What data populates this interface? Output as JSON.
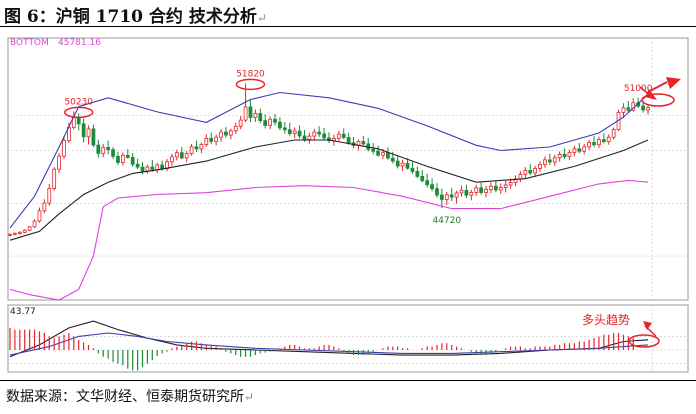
{
  "title": "图 6：沪铜 1710 合约 技术分析",
  "source": "数据来源：文华财经、恒泰期货研究所",
  "para_mark": "↵",
  "colors": {
    "up": "#e8232a",
    "down": "#1e8a3a",
    "upper_band": "#3c3cb4",
    "mid_band": "#222222",
    "lower_band": "#e040e0",
    "diff": "#222222",
    "dea": "#3c3cb4",
    "annot": "#e8232a",
    "green_label": "#2a7a2a",
    "grid": "#c8c8c8"
  },
  "chart_data": {
    "type": "candlestick",
    "price_panel": {
      "bottom_label": "BOTTOM",
      "bottom_value": "45781.16",
      "ylim": [
        39500,
        54400
      ],
      "annotations": [
        {
          "label": "50230",
          "value": 50230,
          "bar": 14,
          "circled": true
        },
        {
          "label": "51820",
          "value": 51820,
          "bar": 49,
          "circled": true
        },
        {
          "label": "44720",
          "value": 44720,
          "bar": 89
        },
        {
          "label": "51000",
          "value": 51000,
          "bar": 128
        }
      ],
      "candles": [
        [
          43180,
          43290,
          43110,
          43240
        ],
        [
          43240,
          43350,
          43170,
          43290
        ],
        [
          43290,
          43410,
          43210,
          43350
        ],
        [
          43350,
          43530,
          43290,
          43470
        ],
        [
          43470,
          43710,
          43410,
          43660
        ],
        [
          43660,
          44090,
          43590,
          43990
        ],
        [
          43990,
          44760,
          43900,
          44570
        ],
        [
          44570,
          45230,
          44440,
          45010
        ],
        [
          45010,
          46090,
          44860,
          45840
        ],
        [
          45840,
          47060,
          45720,
          46940
        ],
        [
          46940,
          47850,
          46710,
          47680
        ],
        [
          47680,
          48840,
          47500,
          48570
        ],
        [
          48570,
          49600,
          48430,
          49320
        ],
        [
          49320,
          50230,
          49210,
          49880
        ],
        [
          49880,
          50110,
          49150,
          49520
        ],
        [
          49520,
          49830,
          48450,
          48780
        ],
        [
          48780,
          49430,
          48340,
          49230
        ],
        [
          49230,
          49470,
          48200,
          48310
        ],
        [
          48310,
          48620,
          47600,
          47840
        ],
        [
          47840,
          48380,
          47620,
          48180
        ],
        [
          48180,
          48560,
          47790,
          48050
        ],
        [
          48050,
          48190,
          47510,
          47670
        ],
        [
          47670,
          47930,
          47180,
          47320
        ],
        [
          47320,
          47890,
          47150,
          47730
        ],
        [
          47730,
          48080,
          47530,
          47610
        ],
        [
          47610,
          47860,
          47070,
          47220
        ],
        [
          47220,
          47530,
          46950,
          47060
        ],
        [
          47060,
          47350,
          46640,
          46840
        ],
        [
          46840,
          47200,
          46680,
          47060
        ],
        [
          47060,
          47470,
          46790,
          46920
        ],
        [
          46920,
          47310,
          46710,
          47180
        ],
        [
          47180,
          47430,
          46850,
          46970
        ],
        [
          46970,
          47520,
          46820,
          47360
        ],
        [
          47360,
          47810,
          47130,
          47640
        ],
        [
          47640,
          48050,
          47440,
          47880
        ],
        [
          47880,
          48200,
          47510,
          47580
        ],
        [
          47580,
          47970,
          47340,
          47830
        ],
        [
          47830,
          48380,
          47700,
          48210
        ],
        [
          48210,
          48560,
          47920,
          48090
        ],
        [
          48090,
          48460,
          47850,
          48340
        ],
        [
          48340,
          48930,
          48210,
          48690
        ],
        [
          48690,
          49040,
          48360,
          48520
        ],
        [
          48520,
          48900,
          48290,
          48760
        ],
        [
          48760,
          49220,
          48510,
          49050
        ],
        [
          49050,
          49330,
          48720,
          48880
        ],
        [
          48880,
          49240,
          48630,
          49120
        ],
        [
          49120,
          49580,
          48940,
          49370
        ],
        [
          49370,
          49960,
          49210,
          49730
        ],
        [
          49730,
          51820,
          49610,
          50480
        ],
        [
          50480,
          50860,
          49620,
          49880
        ],
        [
          49880,
          50340,
          49630,
          50110
        ],
        [
          50110,
          50380,
          49550,
          49700
        ],
        [
          49700,
          50060,
          49260,
          49430
        ],
        [
          49430,
          49930,
          49210,
          49780
        ],
        [
          49780,
          50080,
          49430,
          49610
        ],
        [
          49610,
          49890,
          49160,
          49290
        ],
        [
          49290,
          49620,
          48960,
          49180
        ],
        [
          49180,
          49580,
          48810,
          48960
        ],
        [
          48960,
          49320,
          48710,
          49110
        ],
        [
          49110,
          49430,
          48680,
          48830
        ],
        [
          48830,
          49170,
          48490,
          48630
        ],
        [
          48630,
          49010,
          48390,
          48820
        ],
        [
          48820,
          49230,
          48610,
          49050
        ],
        [
          49050,
          49370,
          48770,
          48940
        ],
        [
          48940,
          49280,
          48610,
          48720
        ],
        [
          48720,
          49030,
          48420,
          48560
        ],
        [
          48560,
          48900,
          48270,
          48690
        ],
        [
          48690,
          49110,
          48550,
          48930
        ],
        [
          48930,
          49260,
          48640,
          48740
        ],
        [
          48740,
          49010,
          48330,
          48440
        ],
        [
          48440,
          48770,
          48120,
          48290
        ],
        [
          48290,
          48640,
          48010,
          48510
        ],
        [
          48510,
          48830,
          48240,
          48380
        ],
        [
          48380,
          48710,
          47950,
          48070
        ],
        [
          48070,
          48420,
          47790,
          47960
        ],
        [
          47960,
          48280,
          47650,
          47740
        ],
        [
          47740,
          48090,
          47510,
          47880
        ],
        [
          47880,
          48180,
          47490,
          47570
        ],
        [
          47570,
          47920,
          47260,
          47400
        ],
        [
          47400,
          47720,
          46980,
          47120
        ],
        [
          47120,
          47480,
          46830,
          47280
        ],
        [
          47280,
          47560,
          46920,
          46990
        ],
        [
          46990,
          47350,
          46670,
          46810
        ],
        [
          46810,
          47090,
          46420,
          46530
        ],
        [
          46530,
          46900,
          46180,
          46290
        ],
        [
          46290,
          46670,
          45910,
          46060
        ],
        [
          46060,
          46420,
          45680,
          45830
        ],
        [
          45830,
          46150,
          45320,
          45470
        ],
        [
          45470,
          45830,
          44720,
          45220
        ],
        [
          45220,
          45640,
          44900,
          45480
        ],
        [
          45480,
          45860,
          45130,
          45350
        ],
        [
          45350,
          45720,
          44980,
          45590
        ],
        [
          45590,
          46010,
          45380,
          45740
        ],
        [
          45740,
          46050,
          45300,
          45460
        ],
        [
          45460,
          45780,
          45170,
          45620
        ],
        [
          45620,
          46060,
          45420,
          45880
        ],
        [
          45880,
          46190,
          45490,
          45610
        ],
        [
          45610,
          45990,
          45350,
          45790
        ],
        [
          45790,
          46200,
          45580,
          45970
        ],
        [
          45970,
          46290,
          45630,
          45760
        ],
        [
          45760,
          46130,
          45530,
          45900
        ],
        [
          45900,
          46270,
          45620,
          46040
        ],
        [
          46040,
          46410,
          45830,
          46180
        ],
        [
          46180,
          46590,
          45970,
          46390
        ],
        [
          46390,
          46830,
          46200,
          46650
        ],
        [
          46650,
          47060,
          46410,
          46870
        ],
        [
          46870,
          47240,
          46600,
          46720
        ],
        [
          46720,
          47120,
          46510,
          46980
        ],
        [
          46980,
          47390,
          46790,
          47210
        ],
        [
          47210,
          47660,
          47020,
          47470
        ],
        [
          47470,
          47820,
          47180,
          47350
        ],
        [
          47350,
          47760,
          47130,
          47590
        ],
        [
          47590,
          47950,
          47360,
          47780
        ],
        [
          47780,
          48120,
          47520,
          47650
        ],
        [
          47650,
          48050,
          47460,
          47890
        ],
        [
          47890,
          48270,
          47680,
          48100
        ],
        [
          48100,
          48430,
          47840,
          47960
        ],
        [
          47960,
          48380,
          47780,
          48210
        ],
        [
          48210,
          48600,
          48040,
          48460
        ],
        [
          48460,
          48820,
          48200,
          48330
        ],
        [
          48330,
          48790,
          48130,
          48620
        ],
        [
          48620,
          48980,
          48410,
          48510
        ],
        [
          48510,
          48920,
          48330,
          48760
        ],
        [
          48760,
          49310,
          48630,
          49190
        ],
        [
          49190,
          50340,
          49110,
          50170
        ],
        [
          50170,
          50690,
          49840,
          50430
        ],
        [
          50430,
          50810,
          50140,
          50290
        ],
        [
          50290,
          50980,
          50220,
          50720
        ],
        [
          50720,
          51000,
          50410,
          50530
        ],
        [
          50530,
          50810,
          50160,
          50310
        ],
        [
          50310,
          50640,
          50050,
          50440
        ]
      ],
      "upper_band": [
        [
          0,
          43600
        ],
        [
          5,
          45400
        ],
        [
          10,
          48200
        ],
        [
          14,
          50500
        ],
        [
          20,
          51000
        ],
        [
          30,
          50200
        ],
        [
          40,
          49600
        ],
        [
          49,
          50900
        ],
        [
          55,
          51300
        ],
        [
          65,
          51000
        ],
        [
          75,
          50400
        ],
        [
          85,
          49400
        ],
        [
          95,
          48300
        ],
        [
          100,
          48000
        ],
        [
          110,
          48200
        ],
        [
          120,
          49000
        ],
        [
          125,
          49900
        ],
        [
          130,
          51200
        ]
      ],
      "mid_band": [
        [
          0,
          42900
        ],
        [
          6,
          43400
        ],
        [
          10,
          44400
        ],
        [
          15,
          45500
        ],
        [
          20,
          46200
        ],
        [
          25,
          46700
        ],
        [
          30,
          46900
        ],
        [
          40,
          47400
        ],
        [
          50,
          48200
        ],
        [
          58,
          48600
        ],
        [
          65,
          48600
        ],
        [
          75,
          48100
        ],
        [
          85,
          47100
        ],
        [
          95,
          46200
        ],
        [
          105,
          46400
        ],
        [
          115,
          47100
        ],
        [
          125,
          48000
        ],
        [
          130,
          48600
        ]
      ],
      "lower_band": [
        [
          0,
          40100
        ],
        [
          4,
          39800
        ],
        [
          10,
          39500
        ],
        [
          14,
          40100
        ],
        [
          17,
          42000
        ],
        [
          19,
          44800
        ],
        [
          22,
          45300
        ],
        [
          30,
          45500
        ],
        [
          40,
          45600
        ],
        [
          50,
          45900
        ],
        [
          60,
          46000
        ],
        [
          70,
          45900
        ],
        [
          80,
          45400
        ],
        [
          90,
          44700
        ],
        [
          100,
          44700
        ],
        [
          110,
          45400
        ],
        [
          120,
          46100
        ],
        [
          126,
          46300
        ],
        [
          130,
          46200
        ]
      ]
    },
    "macd_panel": {
      "top_label": "43.77",
      "hist": [
        26,
        24,
        24,
        24,
        24,
        24,
        22,
        20,
        16,
        14,
        16,
        18,
        20,
        16,
        12,
        9,
        6,
        2,
        -4,
        -8,
        -10,
        -14,
        -16,
        -18,
        -22,
        -24,
        -24,
        -20,
        -16,
        -12,
        -7,
        -4,
        -2,
        2,
        4,
        6,
        8,
        10,
        10,
        8,
        6,
        6,
        4,
        2,
        -2,
        -4,
        -6,
        -8,
        -8,
        -8,
        -6,
        -4,
        -3,
        -2,
        0,
        2,
        4,
        6,
        6,
        4,
        2,
        2,
        2,
        4,
        6,
        6,
        4,
        2,
        -2,
        -4,
        -6,
        -6,
        -6,
        -4,
        -2,
        0,
        2,
        4,
        4,
        4,
        2,
        2,
        0,
        0,
        2,
        4,
        4,
        6,
        8,
        8,
        6,
        4,
        2,
        0,
        -2,
        -4,
        -6,
        -6,
        -4,
        -2,
        0,
        2,
        4,
        4,
        4,
        2,
        2,
        4,
        4,
        4,
        4,
        6,
        6,
        8,
        8,
        8,
        10,
        10,
        12,
        14,
        16,
        18,
        18,
        20,
        20,
        18,
        16,
        14
      ],
      "diff": [
        [
          0,
          -8
        ],
        [
          6,
          6
        ],
        [
          12,
          26
        ],
        [
          17,
          34
        ],
        [
          22,
          24
        ],
        [
          28,
          14
        ],
        [
          34,
          6
        ],
        [
          40,
          2
        ],
        [
          50,
          0
        ],
        [
          60,
          -2
        ],
        [
          70,
          -4
        ],
        [
          80,
          -6
        ],
        [
          90,
          -6
        ],
        [
          100,
          -4
        ],
        [
          110,
          0
        ],
        [
          120,
          2
        ],
        [
          125,
          10
        ],
        [
          130,
          12
        ]
      ],
      "dea": [
        [
          0,
          -6
        ],
        [
          8,
          4
        ],
        [
          14,
          16
        ],
        [
          20,
          20
        ],
        [
          26,
          16
        ],
        [
          32,
          10
        ],
        [
          40,
          6
        ],
        [
          50,
          2
        ],
        [
          60,
          0
        ],
        [
          70,
          -2
        ],
        [
          80,
          -4
        ],
        [
          90,
          -4
        ],
        [
          100,
          -2
        ],
        [
          110,
          0
        ],
        [
          120,
          2
        ],
        [
          130,
          6
        ]
      ],
      "annotation": "多头趋势"
    }
  }
}
